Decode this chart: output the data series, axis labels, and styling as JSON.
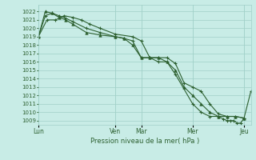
{
  "background_color": "#c8ece6",
  "grid_color": "#a0d0c8",
  "line_color": "#2d6030",
  "ylim_min": 1008.5,
  "ylim_max": 1022.8,
  "yticks": [
    1009,
    1010,
    1011,
    1012,
    1013,
    1014,
    1015,
    1016,
    1017,
    1018,
    1019,
    1020,
    1021,
    1022
  ],
  "xlabel": "Pression niveau de la mer( hPa )",
  "xtick_labels": [
    "Lun",
    "Ven",
    "Mar",
    "Mer",
    "Jeu"
  ],
  "xtick_x": [
    0,
    45,
    60,
    90,
    120
  ],
  "vline_x": [
    0,
    45,
    60,
    90,
    120
  ],
  "xlim_min": 0,
  "xlim_max": 124,
  "series1_x": [
    0,
    4,
    8,
    12,
    16,
    20,
    28,
    36,
    45,
    50,
    55,
    60,
    65,
    70,
    75,
    80,
    85,
    90,
    95,
    100,
    105,
    110,
    115,
    120
  ],
  "series1_y": [
    1019.0,
    1021.5,
    1021.8,
    1021.5,
    1021.2,
    1020.8,
    1020.0,
    1019.5,
    1019.0,
    1018.8,
    1018.5,
    1016.5,
    1016.5,
    1016.5,
    1016.5,
    1015.8,
    1013.5,
    1013.0,
    1012.5,
    1011.0,
    1009.8,
    1009.5,
    1009.5,
    1009.3
  ],
  "series2_x": [
    0,
    4,
    8,
    12,
    16,
    20,
    28,
    36,
    45,
    50,
    55,
    60,
    65,
    70,
    75,
    80,
    85,
    90,
    95,
    100,
    105,
    110,
    115,
    120
  ],
  "series2_y": [
    1019.0,
    1022.0,
    1021.8,
    1021.3,
    1021.0,
    1020.5,
    1019.5,
    1019.2,
    1019.0,
    1018.8,
    1018.0,
    1016.5,
    1016.5,
    1016.5,
    1016.0,
    1015.0,
    1013.0,
    1012.0,
    1011.0,
    1010.0,
    1009.5,
    1009.5,
    1009.5,
    1009.3
  ],
  "series3_x": [
    0,
    5,
    10,
    15,
    20,
    25,
    30,
    36,
    45,
    55,
    60,
    65,
    70,
    75,
    80,
    90,
    95,
    100,
    105,
    108,
    110,
    112,
    114,
    116,
    118,
    120,
    124
  ],
  "series3_y": [
    1019.0,
    1021.0,
    1021.0,
    1021.5,
    1021.3,
    1021.0,
    1020.5,
    1020.0,
    1019.3,
    1019.0,
    1018.5,
    1016.5,
    1016.0,
    1016.0,
    1014.5,
    1011.0,
    1010.0,
    1009.5,
    1009.5,
    1009.2,
    1009.0,
    1009.0,
    1009.0,
    1008.7,
    1008.7,
    1009.3,
    1012.5
  ]
}
